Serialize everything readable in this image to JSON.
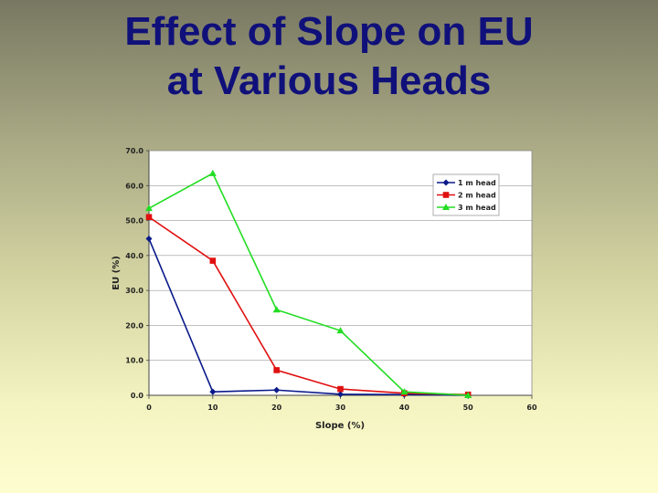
{
  "slide": {
    "title_line1": "Effect of Slope on EU",
    "title_line2": "at Various Heads"
  },
  "chart_data": {
    "type": "line",
    "xlabel": "Slope (%)",
    "ylabel": "EU (%)",
    "xlim": [
      0,
      60
    ],
    "ylim": [
      0,
      70
    ],
    "x_ticks": [
      "0",
      "10",
      "20",
      "30",
      "40",
      "50",
      "60"
    ],
    "y_ticks": [
      "0.0",
      "10.0",
      "20.0",
      "30.0",
      "40.0",
      "50.0",
      "60.0",
      "70.0"
    ],
    "grid": true,
    "legend_position": "top-right",
    "x": [
      0,
      10,
      20,
      30,
      40,
      50
    ],
    "series": [
      {
        "name": "1 m head",
        "values": [
          44.8,
          1.0,
          1.5,
          0.3,
          0.2,
          0.0
        ],
        "color": "#0a1a8a",
        "marker": "diamond"
      },
      {
        "name": "2 m head",
        "values": [
          51.0,
          38.5,
          7.2,
          1.8,
          0.6,
          0.2
        ],
        "color": "#e01010",
        "marker": "square"
      },
      {
        "name": "3 m head",
        "values": [
          53.5,
          63.5,
          24.5,
          18.5,
          1.0,
          0.0
        ],
        "color": "#22dd22",
        "marker": "triangle"
      }
    ]
  }
}
